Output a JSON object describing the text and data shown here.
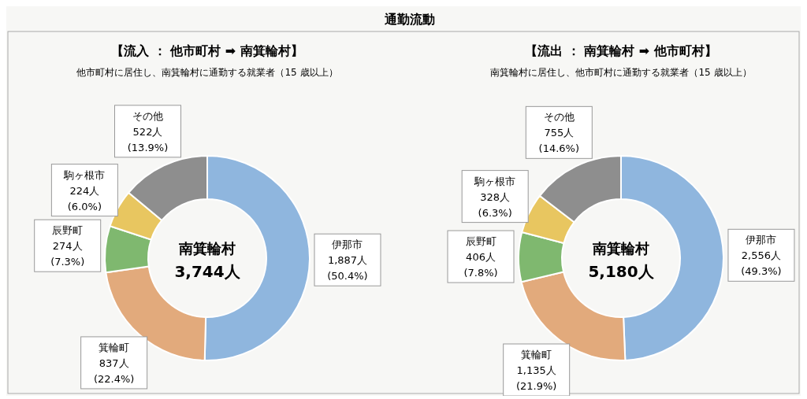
{
  "chart_data": [
    {
      "type": "donut",
      "title": "【流入 ： 他市町村 ➡ 南箕輪村】",
      "subtitle": "他市町村に居住し、南箕輪村に通勤する就業者（15 歳以上）",
      "annotations": [
        "通勤流動",
        "南箕輪村",
        "3,744人"
      ],
      "categories": [
        "伊那市",
        "箕輪町",
        "辰野町",
        "駒ヶ根市",
        "その他"
      ],
      "values": [
        1887,
        837,
        274,
        224,
        522
      ],
      "value_labels": [
        "1,887人 (50.4%)",
        "837人 (22.4%)",
        "274人 (7.3%)",
        "224人 (6.0%)",
        "522人 (13.9%)"
      ],
      "colors": [
        "#8fb6de",
        "#e2aa7c",
        "#7fb86f",
        "#e8c660",
        "#8e8e8e"
      ]
    },
    {
      "type": "donut",
      "title": "【流出 ： 南箕輪村 ➡ 他市町村】",
      "subtitle": "南箕輪村に居住し、他市町村に通勤する就業者（15 歳以上）",
      "annotations": [
        "南箕輪村",
        "5,180人"
      ],
      "categories": [
        "伊那市",
        "箕輪町",
        "辰野町",
        "駒ヶ根市",
        "その他"
      ],
      "values": [
        2556,
        1135,
        406,
        328,
        755
      ],
      "value_labels": [
        "2,556人 (49.3%)",
        "1,135人 (21.9%)",
        "406人 (7.8%)",
        "328人 (6.3%)",
        "755人 (14.6%)"
      ],
      "colors": [
        "#8fb6de",
        "#e2aa7c",
        "#7fb86f",
        "#e8c660",
        "#8e8e8e"
      ]
    }
  ]
}
